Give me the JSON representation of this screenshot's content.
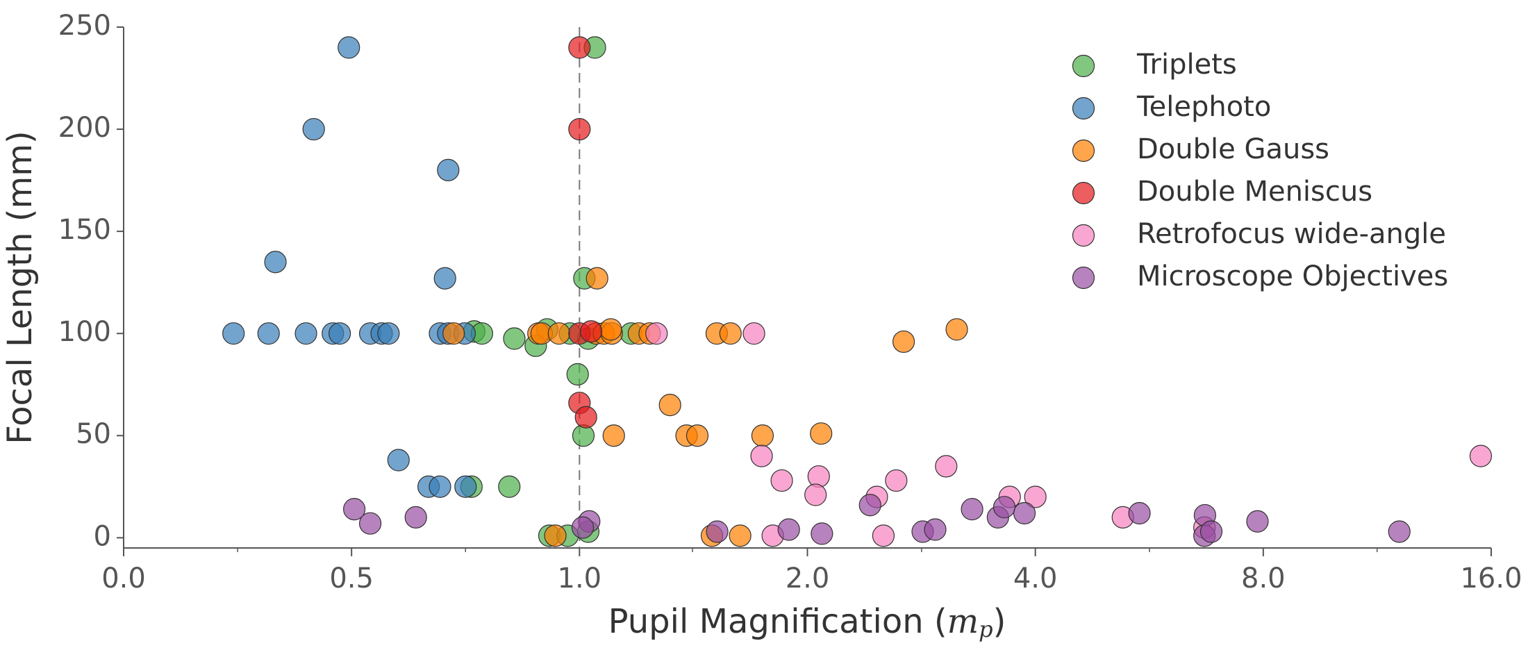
{
  "chart_data": {
    "type": "scatter",
    "xlabel": [
      "Pupil Magnification (",
      "m",
      "p",
      ")"
    ],
    "ylabel": "Focal Length (mm)",
    "xlim": [
      0,
      16
    ],
    "ylim": [
      -5,
      250
    ],
    "xscale": {
      "type": "linear-then-log",
      "linthresh": 1,
      "linscale": 2,
      "base": 2
    },
    "xticks": [
      {
        "value": 0,
        "label": "0.0"
      },
      {
        "value": 0.5,
        "label": "0.5"
      },
      {
        "value": 1,
        "label": "1.0"
      },
      {
        "value": 2,
        "label": "2.0"
      },
      {
        "value": 4,
        "label": "4.0"
      },
      {
        "value": 8,
        "label": "8.0"
      },
      {
        "value": 16,
        "label": "16.0"
      }
    ],
    "xticks_minor": [
      0.25,
      0.75,
      1.41,
      2.83,
      5.66,
      11.31
    ],
    "yticks": [
      0,
      50,
      100,
      150,
      200,
      250
    ],
    "vline": 1,
    "legend": "upper right",
    "grid": false,
    "series": [
      {
        "name": "Triplets",
        "color": "#4daf4a",
        "x": [
          1.048,
          1.015,
          0.929,
          0.769,
          0.786,
          0.857,
          0.904,
          1.027,
          0.979,
          1.17,
          0.996,
          1.012,
          0.763,
          0.846,
          0.934,
          0.974,
          1.027
        ],
        "values": [
          240,
          127,
          102,
          101,
          100,
          97.5,
          94,
          97.5,
          100,
          100,
          80,
          50,
          25,
          25,
          1,
          1,
          3
        ]
      },
      {
        "name": "Telephoto",
        "color": "#377eb8",
        "x": [
          0.494,
          0.417,
          0.712,
          0.333,
          0.705,
          0.241,
          0.318,
          0.4,
          0.459,
          0.474,
          0.541,
          0.566,
          0.581,
          0.694,
          0.712,
          0.748,
          0.603,
          0.669,
          0.694,
          0.75
        ],
        "values": [
          240,
          200,
          180,
          135,
          127,
          100,
          100,
          100,
          100,
          100,
          100,
          100,
          100,
          100,
          100,
          100,
          38,
          25,
          25,
          25
        ]
      },
      {
        "name": "Double Gauss",
        "color": "#ff7f00",
        "x": [
          1.055,
          0.91,
          0.917,
          0.955,
          0.724,
          1.052,
          1.077,
          1.103,
          1.198,
          1.238,
          1.518,
          1.583,
          1.1,
          2.68,
          3.15,
          1.317,
          1.385,
          1.431,
          1.745,
          2.085,
          1.11,
          0.947,
          1.496,
          1.63
        ],
        "values": [
          127,
          100,
          100,
          100,
          100,
          100,
          100,
          100,
          100,
          100,
          100,
          100,
          102,
          96,
          102,
          65,
          50,
          50,
          50,
          51,
          50,
          1,
          1,
          1
        ]
      },
      {
        "name": "Double Meniscus",
        "color": "#e41a1c",
        "x": [
          1.0,
          1.0,
          1.0,
          1.036,
          1.0,
          1.02
        ],
        "values": [
          240,
          200,
          100,
          101,
          66,
          59
        ]
      },
      {
        "name": "Retrofocus wide-angle",
        "color": "#f781bf",
        "x": [
          1.264,
          1.7,
          1.74,
          1.85,
          2.07,
          2.05,
          2.47,
          2.62,
          3.05,
          3.7,
          4.0,
          5.22,
          6.69,
          15.5,
          1.8,
          2.52
        ],
        "values": [
          100,
          100,
          40,
          28,
          30,
          21,
          20,
          28,
          35,
          20,
          20,
          10,
          5,
          40,
          1,
          1
        ]
      },
      {
        "name": "Microscope Objectives",
        "color": "#984ea3",
        "x": [
          0.506,
          0.541,
          0.641,
          1.03,
          1.01,
          1.52,
          1.89,
          2.09,
          2.42,
          2.84,
          2.95,
          3.3,
          3.57,
          3.64,
          3.87,
          5.49,
          6.7,
          6.69,
          6.83,
          7.86,
          12.1
        ],
        "values": [
          14,
          7,
          10,
          8,
          5,
          3,
          4,
          2,
          16,
          3,
          4,
          14,
          10,
          15,
          12,
          12,
          11,
          1,
          3,
          8,
          3
        ]
      }
    ]
  }
}
